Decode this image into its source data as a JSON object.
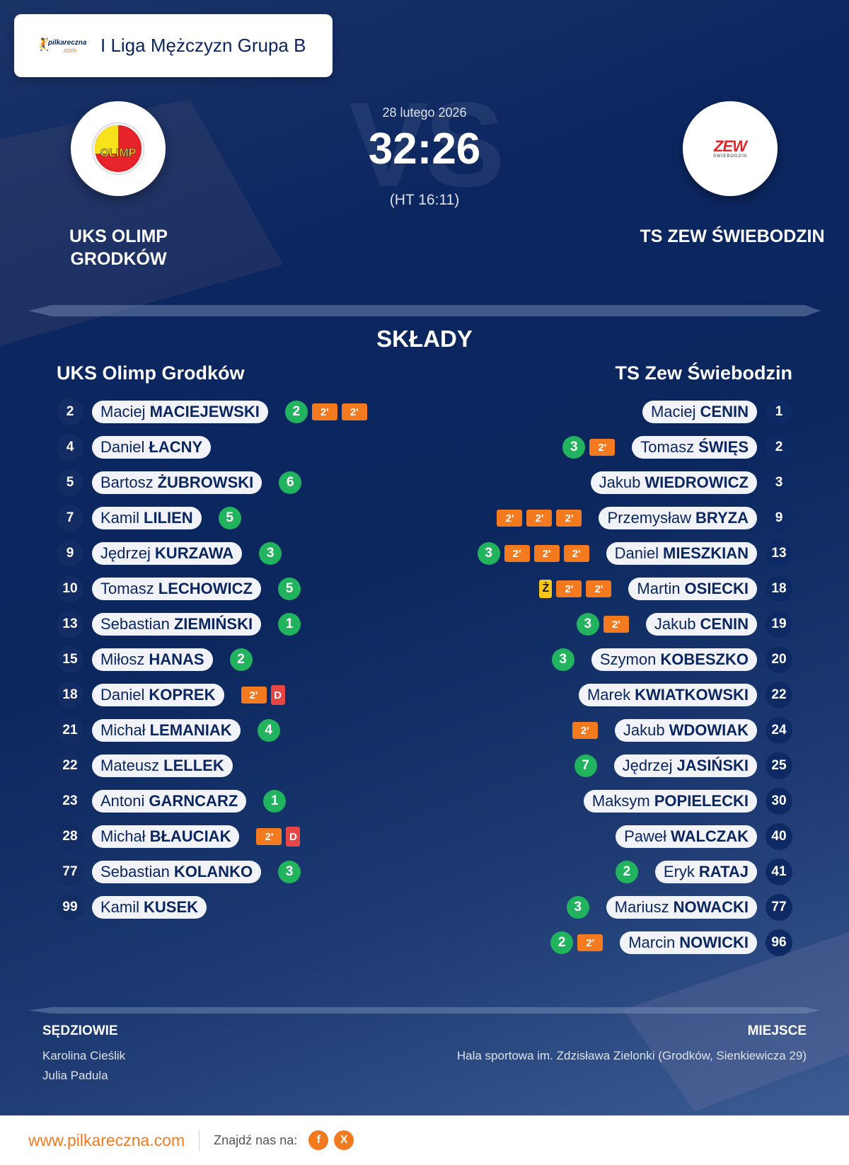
{
  "header": {
    "brand": {
      "name": "pilkareczna",
      "suffix": ".com"
    },
    "league": "I Liga Mężczyzn Grupa B"
  },
  "match": {
    "date": "28 lutego 2026",
    "score": "32:26",
    "halftime": "(HT 16:11)",
    "vs_watermark": "VS",
    "home": {
      "name": "UKS OLIMP GRODKÓW",
      "logo_text": "OLIMP"
    },
    "away": {
      "name": "TS ZEW ŚWIEBODZIN",
      "logo_text": "ZEW",
      "logo_sub": "ŚWIEBODZIN"
    }
  },
  "lineups": {
    "title": "SKŁADY",
    "home": {
      "team": "UKS Olimp Grodków",
      "players": [
        {
          "number": "2",
          "first": "Maciej",
          "last": "MACIEJEWSKI",
          "events": [
            {
              "type": "goal",
              "label": "2"
            },
            {
              "type": "susp",
              "label": "2'"
            },
            {
              "type": "susp",
              "label": "2'"
            }
          ]
        },
        {
          "number": "4",
          "first": "Daniel",
          "last": "ŁACNY",
          "events": []
        },
        {
          "number": "5",
          "first": "Bartosz",
          "last": "ŻUBROWSKI",
          "events": [
            {
              "type": "goal",
              "label": "6"
            }
          ]
        },
        {
          "number": "7",
          "first": "Kamil",
          "last": "LILIEN",
          "events": [
            {
              "type": "goal",
              "label": "5"
            }
          ]
        },
        {
          "number": "9",
          "first": "Jędrzej",
          "last": "KURZAWA",
          "events": [
            {
              "type": "goal",
              "label": "3"
            }
          ]
        },
        {
          "number": "10",
          "first": "Tomasz",
          "last": "LECHOWICZ",
          "events": [
            {
              "type": "goal",
              "label": "5"
            }
          ]
        },
        {
          "number": "13",
          "first": "Sebastian",
          "last": "ZIEMIŃSKI",
          "events": [
            {
              "type": "goal",
              "label": "1"
            }
          ]
        },
        {
          "number": "15",
          "first": "Miłosz",
          "last": "HANAS",
          "events": [
            {
              "type": "goal",
              "label": "2"
            }
          ]
        },
        {
          "number": "18",
          "first": "Daniel",
          "last": "KOPREK",
          "events": [
            {
              "type": "susp",
              "label": "2'"
            },
            {
              "type": "red",
              "label": "D"
            }
          ]
        },
        {
          "number": "21",
          "first": "Michał",
          "last": "LEMANIAK",
          "events": [
            {
              "type": "goal",
              "label": "4"
            }
          ]
        },
        {
          "number": "22",
          "first": "Mateusz",
          "last": "LELLEK",
          "events": []
        },
        {
          "number": "23",
          "first": "Antoni",
          "last": "GARNCARZ",
          "events": [
            {
              "type": "goal",
              "label": "1"
            }
          ]
        },
        {
          "number": "28",
          "first": "Michał",
          "last": "BŁAUCIAK",
          "events": [
            {
              "type": "susp",
              "label": "2'"
            },
            {
              "type": "red",
              "label": "D"
            }
          ]
        },
        {
          "number": "77",
          "first": "Sebastian",
          "last": "KOLANKO",
          "events": [
            {
              "type": "goal",
              "label": "3"
            }
          ]
        },
        {
          "number": "99",
          "first": "Kamil",
          "last": "KUSEK",
          "events": []
        }
      ]
    },
    "away": {
      "team": "TS Zew Świebodzin",
      "players": [
        {
          "number": "1",
          "first": "Maciej",
          "last": "CENIN",
          "events": []
        },
        {
          "number": "2",
          "first": "Tomasz",
          "last": "ŚWIĘS",
          "events": [
            {
              "type": "susp",
              "label": "2'"
            },
            {
              "type": "goal",
              "label": "3"
            }
          ]
        },
        {
          "number": "3",
          "first": "Jakub",
          "last": "WIEDROWICZ",
          "events": []
        },
        {
          "number": "9",
          "first": "Przemysław",
          "last": "BRYZA",
          "events": [
            {
              "type": "susp",
              "label": "2'"
            },
            {
              "type": "susp",
              "label": "2'"
            },
            {
              "type": "susp",
              "label": "2'"
            }
          ]
        },
        {
          "number": "13",
          "first": "Daniel",
          "last": "MIESZKIAN",
          "events": [
            {
              "type": "susp",
              "label": "2'"
            },
            {
              "type": "susp",
              "label": "2'"
            },
            {
              "type": "susp",
              "label": "2'"
            },
            {
              "type": "goal",
              "label": "3"
            }
          ]
        },
        {
          "number": "18",
          "first": "Martin",
          "last": "OSIECKI",
          "events": [
            {
              "type": "susp",
              "label": "2'"
            },
            {
              "type": "susp",
              "label": "2'"
            },
            {
              "type": "yellow",
              "label": "Ż"
            }
          ]
        },
        {
          "number": "19",
          "first": "Jakub",
          "last": "CENIN",
          "events": [
            {
              "type": "susp",
              "label": "2'"
            },
            {
              "type": "goal",
              "label": "3"
            }
          ]
        },
        {
          "number": "20",
          "first": "Szymon",
          "last": "KOBESZKO",
          "events": [
            {
              "type": "goal",
              "label": "3"
            }
          ]
        },
        {
          "number": "22",
          "first": "Marek",
          "last": "KWIATKOWSKI",
          "events": []
        },
        {
          "number": "24",
          "first": "Jakub",
          "last": "WDOWIAK",
          "events": [
            {
              "type": "susp",
              "label": "2'"
            }
          ]
        },
        {
          "number": "25",
          "first": "Jędrzej",
          "last": "JASIŃSKI",
          "events": [
            {
              "type": "goal",
              "label": "7"
            }
          ]
        },
        {
          "number": "30",
          "first": "Maksym",
          "last": "POPIELECKI",
          "events": []
        },
        {
          "number": "40",
          "first": "Paweł",
          "last": "WALCZAK",
          "events": []
        },
        {
          "number": "41",
          "first": "Eryk",
          "last": "RATAJ",
          "events": [
            {
              "type": "goal",
              "label": "2"
            }
          ]
        },
        {
          "number": "77",
          "first": "Mariusz",
          "last": "NOWACKI",
          "events": [
            {
              "type": "goal",
              "label": "3"
            }
          ]
        },
        {
          "number": "96",
          "first": "Marcin",
          "last": "NOWICKI",
          "events": [
            {
              "type": "susp",
              "label": "2'"
            },
            {
              "type": "goal",
              "label": "2"
            }
          ]
        }
      ]
    }
  },
  "referees": {
    "label": "SĘDZIOWIE",
    "names": [
      "Karolina Cieślik",
      "Julia Padula"
    ]
  },
  "venue": {
    "label": "MIEJSCE",
    "text": "Hala sportowa im. Zdzisława Zielonki (Grodków, Sienkiewicza 29)"
  },
  "footer": {
    "site": "www.pilkareczna.com",
    "find_us": "Znajdź nas na:",
    "social": [
      {
        "name": "facebook",
        "label": "f"
      },
      {
        "name": "x",
        "label": "X"
      }
    ]
  },
  "colors": {
    "background": "#0b275e",
    "goal": "#22b35e",
    "suspension": "#f47a1f",
    "red_card": "#e84545",
    "yellow_card": "#f7c71b",
    "accent": "#f47a1f"
  }
}
